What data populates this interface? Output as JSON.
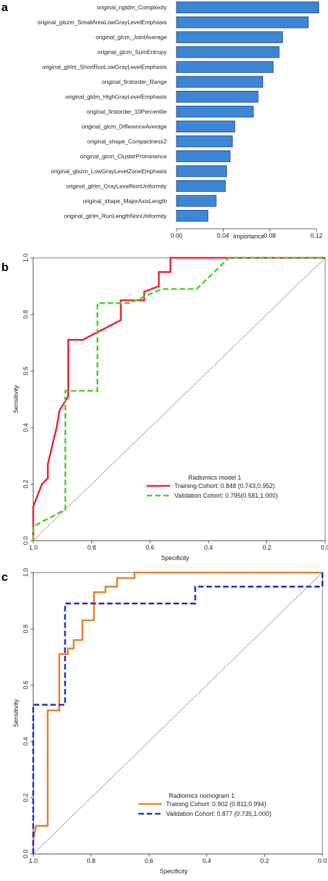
{
  "panels": [
    {
      "letter": "a"
    },
    {
      "letter": "b"
    },
    {
      "letter": "c"
    }
  ],
  "colors": {
    "bar_fill": "#3d86d6",
    "bar_stroke": "#1a3f7a",
    "diag": "#a8a8a8",
    "roc_b_train": "#e8263c",
    "roc_b_valid": "#4ed12a",
    "roc_c_train": "#de8534",
    "roc_c_valid": "#1f2fc8"
  },
  "chart_data": [
    {
      "type": "bar",
      "orientation": "horizontal",
      "categories": [
        "original_ngtdm_Complexity",
        "original_glszm_SmallAreaLowGrayLevelEmphasis",
        "original_glcm_JointAverage",
        "original_glcm_SumEntropy",
        "original_glrlm_ShortRunLowGrayLevelEmphasis",
        "original_firstorder_Range",
        "original_gldm_HighGrayLevelEmphasis",
        "original_firstorder_10Percentile",
        "original_glcm_DifferenceAverage",
        "original_shape_Compactness2",
        "original_glcm_ClusterProminence",
        "original_glszm_LowGrayLevelZoneEmphasis",
        "original_glrlm_GrayLevelNonUniformity",
        "original_shape_MajorAxisLength",
        "original_glrlm_RunLengthNonUniformity"
      ],
      "values": [
        0.122,
        0.113,
        0.091,
        0.088,
        0.083,
        0.074,
        0.07,
        0.066,
        0.05,
        0.048,
        0.046,
        0.043,
        0.042,
        0.034,
        0.027
      ],
      "xlabel": "Importance",
      "xlim": [
        0,
        0.124
      ],
      "xticks": [
        0.0,
        0.04,
        0.08,
        0.12
      ],
      "xtick_labels": [
        "0.00",
        "0.04",
        "0.08",
        "0.12"
      ]
    },
    {
      "type": "line",
      "xlabel": "Specificity",
      "ylabel": "Sensitivity",
      "x_reversed": true,
      "xlim": [
        1.0,
        0.0
      ],
      "ylim": [
        0.0,
        1.0
      ],
      "xticks": [
        1.0,
        0.8,
        0.6,
        0.4,
        0.2,
        0.0
      ],
      "xtick_labels": [
        "1.0",
        "0.8",
        "0.6",
        "0.4",
        "0.2",
        "0.0"
      ],
      "yticks": [
        0.0,
        0.2,
        0.4,
        0.6,
        0.8,
        1.0
      ],
      "ytick_labels": [
        "0.0",
        "0.2",
        "0.4",
        "0.6",
        "0.8",
        "1.0"
      ],
      "reference_line": true,
      "legend_title": "Radiomics model 1",
      "legend_position": "bottom-right",
      "series": [
        {
          "name": "Training Cohort: 0.848 (0.743,0.952)",
          "style": "solid",
          "points": [
            [
              1.0,
              0.0
            ],
            [
              1.0,
              0.12
            ],
            [
              0.97,
              0.2
            ],
            [
              0.95,
              0.22
            ],
            [
              0.95,
              0.27
            ],
            [
              0.92,
              0.4
            ],
            [
              0.91,
              0.46
            ],
            [
              0.88,
              0.51
            ],
            [
              0.88,
              0.71
            ],
            [
              0.83,
              0.71
            ],
            [
              0.7,
              0.78
            ],
            [
              0.7,
              0.85
            ],
            [
              0.62,
              0.85
            ],
            [
              0.62,
              0.88
            ],
            [
              0.57,
              0.9
            ],
            [
              0.57,
              0.95
            ],
            [
              0.53,
              0.95
            ],
            [
              0.53,
              1.0
            ],
            [
              0.0,
              1.0
            ]
          ]
        },
        {
          "name": "Validation Cohort: 0.795(0.581,1.000)",
          "style": "dashed",
          "points": [
            [
              1.0,
              0.0
            ],
            [
              1.0,
              0.05
            ],
            [
              0.89,
              0.11
            ],
            [
              0.89,
              0.53
            ],
            [
              0.78,
              0.53
            ],
            [
              0.78,
              0.84
            ],
            [
              0.67,
              0.84
            ],
            [
              0.56,
              0.89
            ],
            [
              0.44,
              0.89
            ],
            [
              0.33,
              1.0
            ],
            [
              0.0,
              1.0
            ]
          ]
        }
      ]
    },
    {
      "type": "line",
      "xlabel": "Specificity",
      "ylabel": "Sensitivity",
      "x_reversed": true,
      "xlim": [
        1.0,
        0.0
      ],
      "ylim": [
        0.0,
        1.0
      ],
      "xticks": [
        1.0,
        0.8,
        0.6,
        0.4,
        0.2,
        0.0
      ],
      "xtick_labels": [
        "1.0",
        "0.8",
        "0.6",
        "0.4",
        "0.2",
        "0.0"
      ],
      "yticks": [
        0.0,
        0.2,
        0.4,
        0.6,
        0.8,
        1.0
      ],
      "ytick_labels": [
        "0.0",
        "0.2",
        "0.4",
        "0.6",
        "0.8",
        "1.0"
      ],
      "reference_line": true,
      "legend_title": "Radiomics nomogram 1",
      "legend_position": "bottom-right",
      "series": [
        {
          "name": "Training Cohort: 0.902 (0.811,0.994)",
          "style": "solid",
          "points": [
            [
              1.0,
              0.0
            ],
            [
              1.0,
              0.05
            ],
            [
              0.99,
              0.1
            ],
            [
              0.95,
              0.1
            ],
            [
              0.95,
              0.51
            ],
            [
              0.91,
              0.51
            ],
            [
              0.91,
              0.71
            ],
            [
              0.88,
              0.71
            ],
            [
              0.88,
              0.73
            ],
            [
              0.86,
              0.73
            ],
            [
              0.86,
              0.76
            ],
            [
              0.83,
              0.76
            ],
            [
              0.83,
              0.83
            ],
            [
              0.79,
              0.83
            ],
            [
              0.79,
              0.93
            ],
            [
              0.75,
              0.93
            ],
            [
              0.75,
              0.95
            ],
            [
              0.71,
              0.95
            ],
            [
              0.71,
              0.98
            ],
            [
              0.65,
              0.98
            ],
            [
              0.65,
              1.0
            ],
            [
              0.0,
              1.0
            ]
          ]
        },
        {
          "name": "Validation Cohort: 0.877 (0.735,1.000)",
          "style": "dashed",
          "points": [
            [
              1.0,
              0.0
            ],
            [
              1.0,
              0.53
            ],
            [
              0.89,
              0.53
            ],
            [
              0.89,
              0.89
            ],
            [
              0.44,
              0.89
            ],
            [
              0.44,
              0.95
            ],
            [
              0.0,
              0.95
            ],
            [
              0.0,
              1.0
            ]
          ]
        }
      ]
    }
  ]
}
